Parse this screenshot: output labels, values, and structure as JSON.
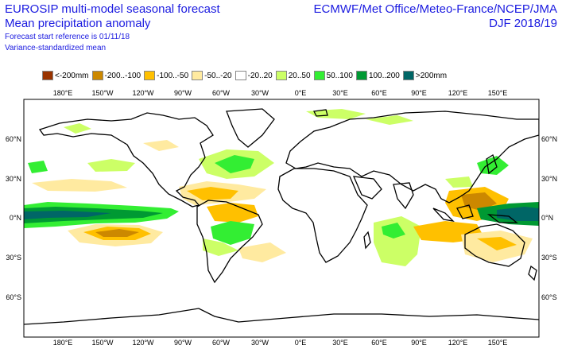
{
  "header": {
    "title_line1": "EUROSIP multi-model seasonal forecast",
    "title_line2": "Mean precipitation anomaly",
    "forecast_ref": "Forecast start reference is 01/11/18",
    "note": "Variance-standardized mean",
    "centres": "ECMWF/Met Office/Meteo-France/NCEP/JMA",
    "season": "DJF 2018/19"
  },
  "legend": [
    {
      "label": "<-200mm",
      "color": "#993300"
    },
    {
      "label": "-200..-100",
      "color": "#cc8800"
    },
    {
      "label": "-100..-50",
      "color": "#ffc000"
    },
    {
      "label": "-50..-20",
      "color": "#ffeaa0"
    },
    {
      "label": "-20..20",
      "color": "#ffffff"
    },
    {
      "label": "20..50",
      "color": "#ccff66"
    },
    {
      "label": "50..100",
      "color": "#33ee33"
    },
    {
      "label": "100..200",
      "color": "#009933"
    },
    {
      "label": ">200mm",
      "color": "#006666"
    }
  ],
  "axes": {
    "lon_labels": [
      "180°E",
      "150°W",
      "120°W",
      "90°W",
      "60°W",
      "30°W",
      "0°E",
      "30°E",
      "60°E",
      "90°E",
      "120°E",
      "150°E"
    ],
    "lat_labels": [
      "60°N",
      "30°N",
      "0°N",
      "30°S",
      "60°S"
    ]
  }
}
